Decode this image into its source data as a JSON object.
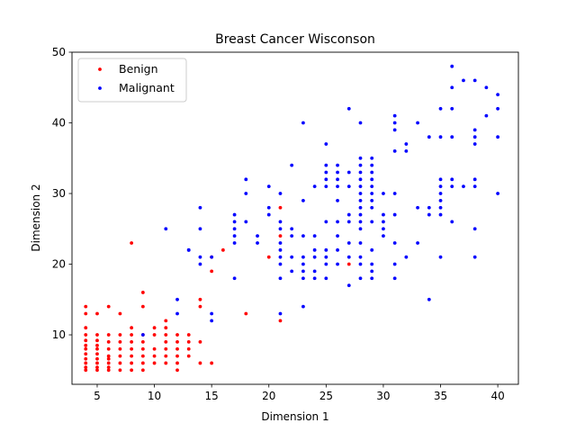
{
  "chart_data": {
    "type": "scatter",
    "title": "Breast Cancer Wisconson",
    "xlabel": "Dimension 1",
    "ylabel": "Dimension 2",
    "xlim": [
      2.8,
      41.8
    ],
    "ylim": [
      3,
      50
    ],
    "xticks": [
      5,
      10,
      15,
      20,
      25,
      30,
      35,
      40
    ],
    "yticks": [
      10,
      20,
      30,
      40,
      50
    ],
    "grid": false,
    "legend_position": "top-left",
    "series": [
      {
        "name": "Benign",
        "color": "#ff0000",
        "points": [
          [
            4,
            14
          ],
          [
            4,
            13
          ],
          [
            4,
            11
          ],
          [
            4,
            10
          ],
          [
            4,
            9.2
          ],
          [
            4,
            8.5
          ],
          [
            4,
            8
          ],
          [
            4,
            7.3
          ],
          [
            4,
            6.6
          ],
          [
            4,
            6
          ],
          [
            4,
            5.4
          ],
          [
            4,
            5
          ],
          [
            5,
            13
          ],
          [
            5,
            10
          ],
          [
            5,
            9.2
          ],
          [
            5,
            8.5
          ],
          [
            5,
            8
          ],
          [
            5,
            7.3
          ],
          [
            5,
            6.6
          ],
          [
            5,
            6
          ],
          [
            5,
            5.4
          ],
          [
            5,
            5
          ],
          [
            6,
            14
          ],
          [
            6,
            10
          ],
          [
            6,
            9
          ],
          [
            6,
            8
          ],
          [
            6,
            7
          ],
          [
            6,
            6.6
          ],
          [
            6,
            6
          ],
          [
            6,
            5.4
          ],
          [
            6,
            5
          ],
          [
            7,
            13
          ],
          [
            7,
            10
          ],
          [
            7,
            9
          ],
          [
            7,
            8
          ],
          [
            7,
            7
          ],
          [
            7,
            6
          ],
          [
            7,
            5
          ],
          [
            8,
            23
          ],
          [
            8,
            11
          ],
          [
            8,
            10
          ],
          [
            8,
            9
          ],
          [
            8,
            8
          ],
          [
            8,
            7
          ],
          [
            8,
            6
          ],
          [
            8,
            5
          ],
          [
            9,
            16
          ],
          [
            9,
            14
          ],
          [
            9,
            10
          ],
          [
            9,
            9
          ],
          [
            9,
            8
          ],
          [
            9,
            7
          ],
          [
            9,
            6
          ],
          [
            9,
            5
          ],
          [
            10,
            11
          ],
          [
            10,
            10
          ],
          [
            10,
            8
          ],
          [
            10,
            7
          ],
          [
            10,
            6
          ],
          [
            11,
            12
          ],
          [
            11,
            11
          ],
          [
            11,
            10
          ],
          [
            11,
            9
          ],
          [
            11,
            8
          ],
          [
            11,
            7
          ],
          [
            11,
            6
          ],
          [
            12,
            10
          ],
          [
            12,
            9
          ],
          [
            12,
            8
          ],
          [
            12,
            7
          ],
          [
            12,
            6
          ],
          [
            12,
            5
          ],
          [
            13,
            10
          ],
          [
            13,
            9
          ],
          [
            13,
            8
          ],
          [
            13,
            7
          ],
          [
            14,
            15
          ],
          [
            14,
            14
          ],
          [
            14,
            9
          ],
          [
            14,
            6
          ],
          [
            15,
            21
          ],
          [
            15,
            19
          ],
          [
            15,
            6
          ],
          [
            16,
            22
          ],
          [
            18,
            13
          ],
          [
            20,
            21
          ],
          [
            21,
            28
          ],
          [
            21,
            24
          ],
          [
            21,
            12
          ],
          [
            27,
            20
          ]
        ]
      },
      {
        "name": "Malignant",
        "color": "#0000ff",
        "points": [
          [
            9,
            10
          ],
          [
            11,
            25
          ],
          [
            12,
            15
          ],
          [
            12,
            13
          ],
          [
            13,
            22
          ],
          [
            13,
            22
          ],
          [
            14,
            28
          ],
          [
            14,
            25
          ],
          [
            14,
            21
          ],
          [
            14,
            20
          ],
          [
            15,
            21
          ],
          [
            15,
            13
          ],
          [
            15,
            12
          ],
          [
            17,
            27
          ],
          [
            17,
            26
          ],
          [
            17,
            25
          ],
          [
            17,
            24
          ],
          [
            17,
            23
          ],
          [
            17,
            18
          ],
          [
            18,
            32
          ],
          [
            18,
            30
          ],
          [
            18,
            26
          ],
          [
            19,
            24
          ],
          [
            19,
            23
          ],
          [
            20,
            31
          ],
          [
            20,
            28
          ],
          [
            20,
            27
          ],
          [
            21,
            30
          ],
          [
            21,
            26
          ],
          [
            21,
            25
          ],
          [
            21,
            23
          ],
          [
            21,
            22
          ],
          [
            21,
            21
          ],
          [
            21,
            20
          ],
          [
            21,
            18
          ],
          [
            21,
            13
          ],
          [
            22,
            34
          ],
          [
            22,
            25
          ],
          [
            22,
            24
          ],
          [
            22,
            21
          ],
          [
            22,
            19
          ],
          [
            23,
            40
          ],
          [
            23,
            29
          ],
          [
            23,
            24
          ],
          [
            23,
            21
          ],
          [
            23,
            20
          ],
          [
            23,
            19
          ],
          [
            23,
            18
          ],
          [
            23,
            14
          ],
          [
            24,
            31
          ],
          [
            24,
            24
          ],
          [
            24,
            22
          ],
          [
            24,
            21
          ],
          [
            24,
            19
          ],
          [
            24,
            18
          ],
          [
            25,
            37
          ],
          [
            25,
            34
          ],
          [
            25,
            33
          ],
          [
            25,
            32
          ],
          [
            25,
            31
          ],
          [
            25,
            26
          ],
          [
            25,
            22
          ],
          [
            25,
            21
          ],
          [
            25,
            20
          ],
          [
            25,
            18
          ],
          [
            26,
            34
          ],
          [
            26,
            33
          ],
          [
            26,
            32
          ],
          [
            26,
            31
          ],
          [
            26,
            29
          ],
          [
            26,
            26
          ],
          [
            26,
            24
          ],
          [
            26,
            22
          ],
          [
            26,
            20
          ],
          [
            27,
            42
          ],
          [
            27,
            33
          ],
          [
            27,
            31
          ],
          [
            27,
            27
          ],
          [
            27,
            26
          ],
          [
            27,
            23
          ],
          [
            27,
            21
          ],
          [
            27,
            17
          ],
          [
            28,
            40
          ],
          [
            28,
            35
          ],
          [
            28,
            34
          ],
          [
            28,
            33
          ],
          [
            28,
            32
          ],
          [
            28,
            31
          ],
          [
            28,
            30
          ],
          [
            28,
            29
          ],
          [
            28,
            28
          ],
          [
            28,
            27
          ],
          [
            28,
            26
          ],
          [
            28,
            25
          ],
          [
            28,
            23
          ],
          [
            28,
            21
          ],
          [
            28,
            20
          ],
          [
            28,
            18
          ],
          [
            29,
            35
          ],
          [
            29,
            34
          ],
          [
            29,
            33
          ],
          [
            29,
            32
          ],
          [
            29,
            31
          ],
          [
            29,
            30
          ],
          [
            29,
            29
          ],
          [
            29,
            28
          ],
          [
            29,
            26
          ],
          [
            29,
            22
          ],
          [
            29,
            20
          ],
          [
            29,
            19
          ],
          [
            29,
            18
          ],
          [
            30,
            30
          ],
          [
            30,
            27
          ],
          [
            30,
            26
          ],
          [
            30,
            25
          ],
          [
            30,
            24
          ],
          [
            31,
            41
          ],
          [
            31,
            40
          ],
          [
            31,
            39
          ],
          [
            31,
            36
          ],
          [
            31,
            30
          ],
          [
            31,
            27
          ],
          [
            31,
            23
          ],
          [
            31,
            20
          ],
          [
            31,
            18
          ],
          [
            32,
            37
          ],
          [
            32,
            36
          ],
          [
            32,
            21
          ],
          [
            33,
            40
          ],
          [
            33,
            28
          ],
          [
            33,
            23
          ],
          [
            34,
            38
          ],
          [
            34,
            28
          ],
          [
            34,
            27
          ],
          [
            34,
            15
          ],
          [
            35,
            42
          ],
          [
            35,
            38
          ],
          [
            35,
            32
          ],
          [
            35,
            31
          ],
          [
            35,
            30
          ],
          [
            35,
            29
          ],
          [
            35,
            28
          ],
          [
            35,
            27
          ],
          [
            35,
            21
          ],
          [
            36,
            48
          ],
          [
            36,
            45
          ],
          [
            36,
            42
          ],
          [
            36,
            38
          ],
          [
            36,
            32
          ],
          [
            36,
            31
          ],
          [
            36,
            26
          ],
          [
            37,
            46
          ],
          [
            37,
            31
          ],
          [
            38,
            46
          ],
          [
            38,
            39
          ],
          [
            38,
            38
          ],
          [
            38,
            37
          ],
          [
            38,
            32
          ],
          [
            38,
            31
          ],
          [
            38,
            25
          ],
          [
            38,
            21
          ],
          [
            39,
            45
          ],
          [
            39,
            41
          ],
          [
            40,
            44
          ],
          [
            40,
            42
          ],
          [
            40,
            38
          ],
          [
            40,
            30
          ]
        ]
      }
    ]
  }
}
